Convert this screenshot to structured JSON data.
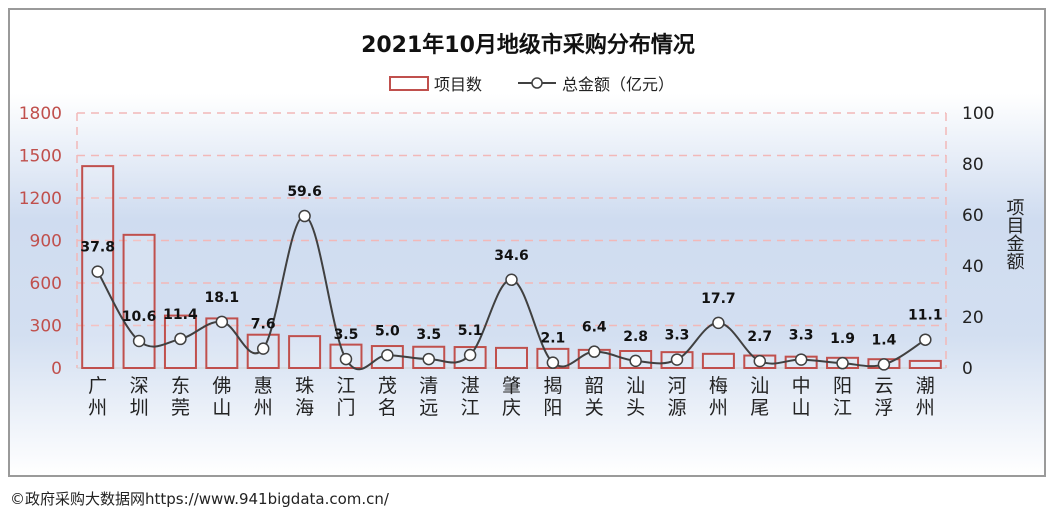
{
  "chart_data": {
    "type": "bar+line",
    "title": "2021年10月地级市采购分布情况",
    "categories": [
      "广州",
      "深圳",
      "东莞",
      "佛山",
      "惠州",
      "珠海",
      "江门",
      "茂名",
      "清远",
      "湛江",
      "肇庆",
      "揭阳",
      "韶关",
      "汕头",
      "河源",
      "梅州",
      "汕尾",
      "中山",
      "阳江",
      "云浮",
      "潮州"
    ],
    "series": [
      {
        "name": "项目数",
        "type": "bar",
        "axis": "left",
        "values": [
          1425,
          940,
          370,
          350,
          235,
          225,
          165,
          155,
          150,
          148,
          142,
          135,
          128,
          120,
          112,
          100,
          88,
          80,
          72,
          62,
          50
        ]
      },
      {
        "name": "总金额（亿元）",
        "type": "line",
        "axis": "right",
        "values": [
          37.8,
          10.6,
          11.4,
          18.1,
          7.6,
          59.6,
          3.5,
          5.0,
          3.5,
          5.1,
          34.6,
          2.1,
          6.4,
          2.8,
          3.3,
          17.7,
          2.7,
          3.3,
          1.9,
          1.4,
          11.1
        ],
        "labels": [
          "37.8",
          "10.6",
          "11.4",
          "18.1",
          "7.6",
          "59.6",
          "3.5",
          "5.0",
          "3.5",
          "5.1",
          "34.6",
          "2.1",
          "6.4",
          "2.8",
          "3.3",
          "17.7",
          "2.7",
          "3.3",
          "1.9",
          "1.4",
          "11.1"
        ]
      }
    ],
    "left_axis": {
      "ticks": [
        "0",
        "300",
        "600",
        "900",
        "1200",
        "1500",
        "1800"
      ],
      "ylim": [
        0,
        1800
      ]
    },
    "right_axis": {
      "ticks": [
        "0",
        "20",
        "40",
        "60",
        "80",
        "100"
      ],
      "ylim": [
        0,
        100
      ],
      "label": "项目金额"
    },
    "legend": [
      "项目数",
      "总金额（亿元）"
    ]
  },
  "credit": "©政府采购大数据网https://www.941bigdata.com.cn/",
  "colors": {
    "bar_edge": "#c0504d",
    "line": "#404040",
    "left_axis_text": "#c0504d",
    "grid": "#f2b8b8"
  }
}
